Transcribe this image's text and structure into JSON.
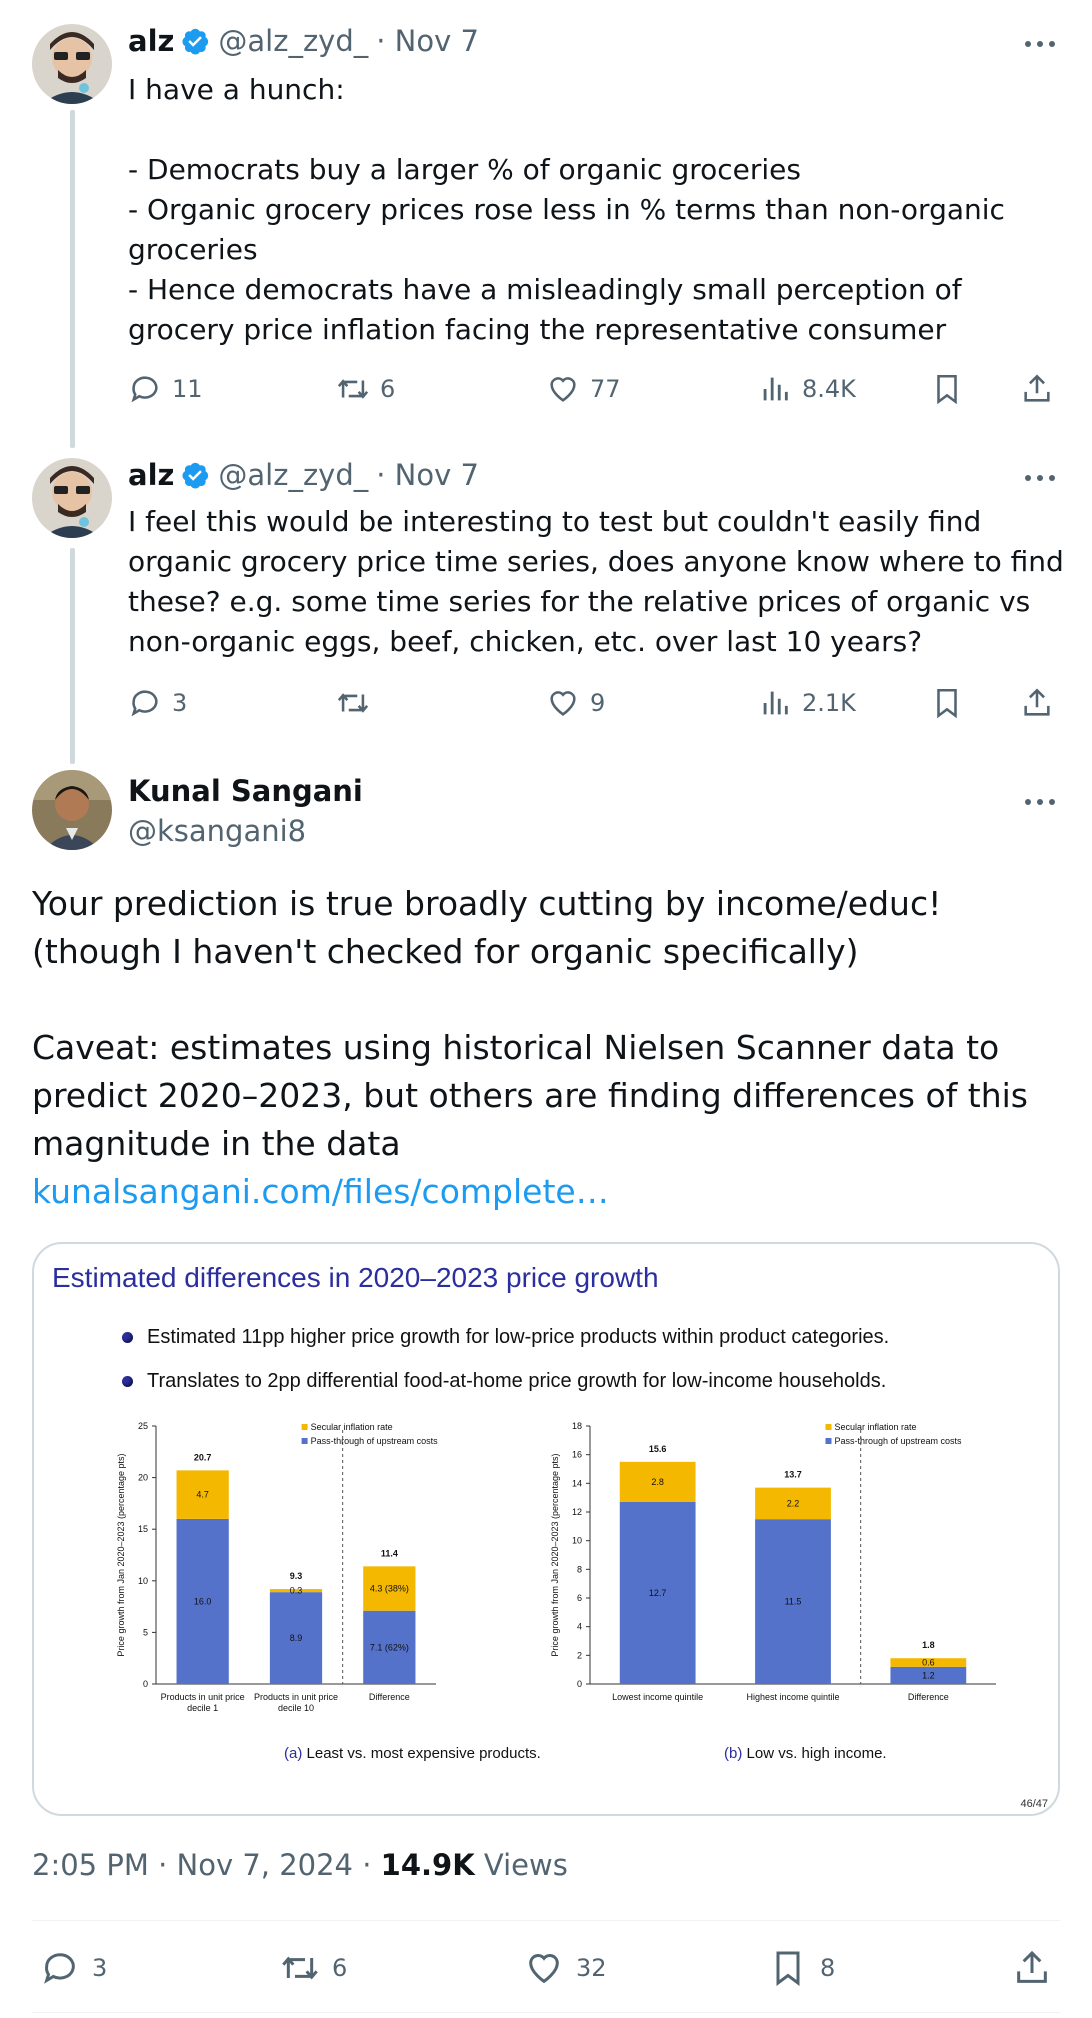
{
  "tweet1": {
    "name": "alz",
    "handle": "@alz_zyd_",
    "date": "· Nov 7",
    "lines": [
      "I have a hunch:",
      "",
      "- Democrats buy a larger % of organic groceries",
      "- Organic grocery prices rose less in % terms than non-organic groceries",
      "- Hence democrats have a misleadingly small perception of grocery price inflation facing the representative consumer"
    ],
    "replies": "11",
    "retweets": "6",
    "likes": "77",
    "views": "8.4K"
  },
  "tweet2": {
    "name": "alz",
    "handle": "@alz_zyd_",
    "date": "· Nov 7",
    "text": "I feel this would be interesting to test but couldn't easily find organic grocery price time series, does anyone know where to find these? e.g. some time series for the relative prices of organic vs non-organic eggs, beef, chicken, etc. over last 10 years?",
    "replies": "3",
    "retweets": "",
    "likes": "9",
    "views": "2.1K"
  },
  "main": {
    "name": "Kunal Sangani",
    "handle": "@ksangani8",
    "paragraph1": "Your prediction is true broadly cutting by income/educ! (though I haven't checked for organic specifically)",
    "paragraph2": "Caveat: estimates using historical Nielsen Scanner data to predict 2020–2023, but others are finding differences of this magnitude in the data",
    "link": "kunalsangani.com/files/complete…",
    "time": "2:05 PM · Nov 7, 2024 · ",
    "views_count": "14.9K",
    "views_label": " Views",
    "replies": "3",
    "retweets": "6",
    "likes": "32",
    "bookmarks": "8"
  },
  "slide": {
    "title": "Estimated differences in 2020–2023 price growth",
    "bullets": [
      "Estimated 11pp higher price growth for low-price products within product categories.",
      "Translates to 2pp differential food-at-home price growth for low-income households."
    ],
    "page": "46/47"
  },
  "colors": {
    "secular": "#f5b800",
    "passthrough": "#5472c9",
    "link": "#1d9bf0",
    "muted": "#536471"
  },
  "chart_data": [
    {
      "type": "bar",
      "stacked": true,
      "caption_tag": "(a)",
      "caption": " Least vs. most expensive products.",
      "ylabel": "Price growth from Jan 2020–2023 (percentage pts)",
      "ylim": [
        0,
        25
      ],
      "yticks": [
        0,
        5,
        10,
        15,
        20,
        25
      ],
      "categories": [
        "Products in unit price|decile 1",
        "Products in unit price|decile 10",
        "Difference"
      ],
      "series": [
        {
          "name": "Pass-through of upstream costs",
          "values": [
            16.0,
            8.9,
            7.1
          ],
          "labels": [
            "16.0",
            "8.9",
            "7.1 (62%)"
          ]
        },
        {
          "name": "Secular inflation rate",
          "values": [
            4.7,
            0.3,
            4.3
          ],
          "labels": [
            "4.7",
            "0.3",
            "4.3 (38%)"
          ]
        }
      ],
      "totals": [
        "20.7",
        "9.3",
        "11.4"
      ]
    },
    {
      "type": "bar",
      "stacked": true,
      "caption_tag": "(b)",
      "caption": " Low vs. high income.",
      "ylabel": "Price growth from Jan 2020–2023 (percentage pts)",
      "ylim": [
        0,
        18
      ],
      "yticks": [
        0,
        2,
        4,
        6,
        8,
        10,
        12,
        14,
        16,
        18
      ],
      "categories": [
        "Lowest income quintile",
        "Highest income quintile",
        "Difference"
      ],
      "series": [
        {
          "name": "Pass-through of upstream costs",
          "values": [
            12.7,
            11.5,
            1.2
          ],
          "labels": [
            "12.7",
            "11.5",
            "1.2"
          ]
        },
        {
          "name": "Secular inflation rate",
          "values": [
            2.8,
            2.2,
            0.6
          ],
          "labels": [
            "2.8",
            "2.2",
            "0.6"
          ]
        }
      ],
      "totals": [
        "15.6",
        "13.7",
        "1.8"
      ]
    }
  ]
}
